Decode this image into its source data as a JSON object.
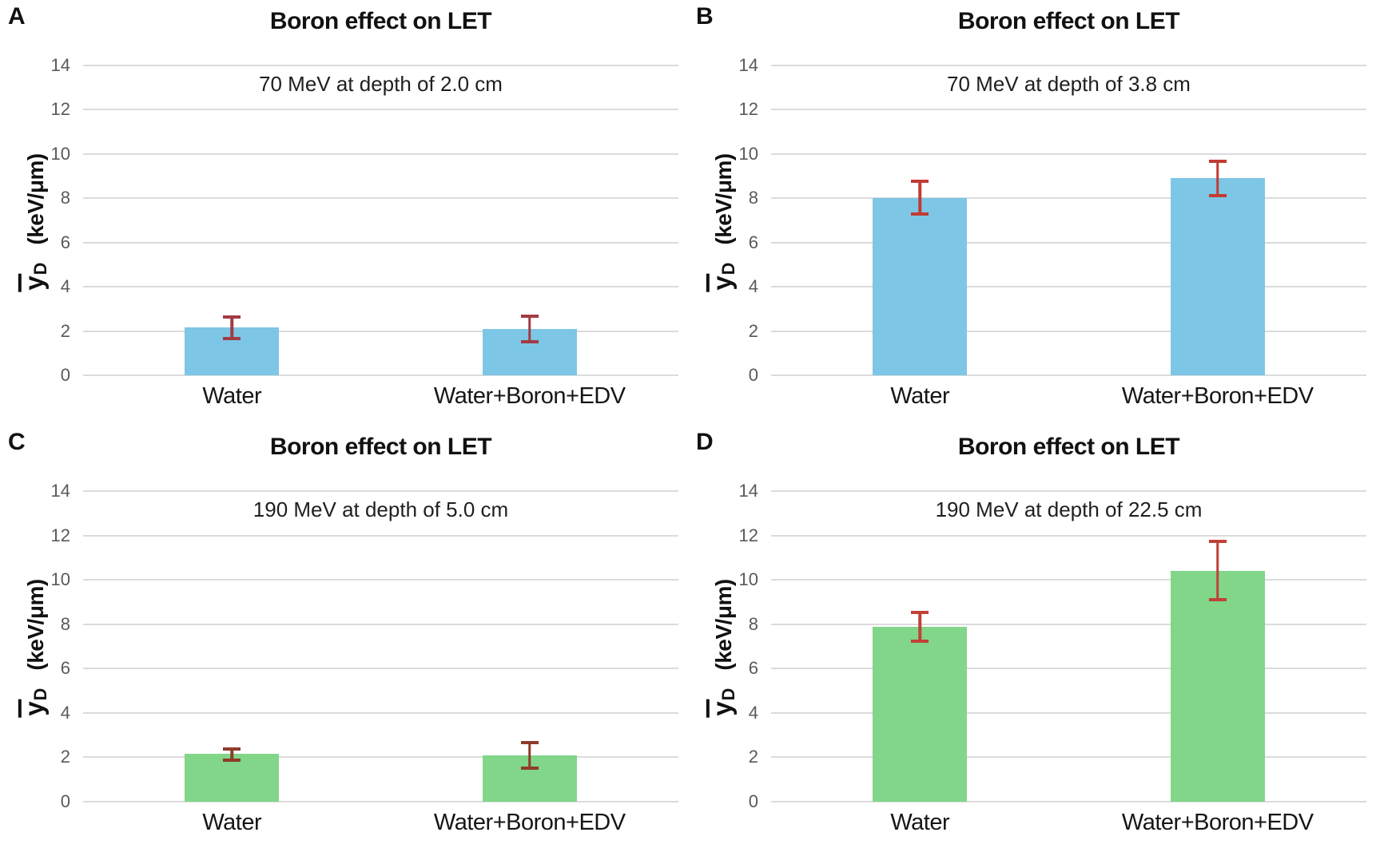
{
  "figure": {
    "background": "#FFFFFF",
    "layout": "2x2-grid",
    "panel_letters": [
      "A",
      "B",
      "C",
      "D"
    ]
  },
  "axis": {
    "ylim": [
      0,
      14
    ],
    "yticks": [
      0,
      2,
      4,
      6,
      8,
      10,
      12,
      14
    ],
    "grid": "horizontal",
    "ylabel_symbol": "y",
    "ylabel_subscript": "D",
    "ylabel_units": "(keV/μm)",
    "tick_color": "#595959",
    "gridline_color": "#DBDBDB",
    "text_color": "#1A1A1A",
    "bar_centers_pct": [
      25,
      75
    ],
    "bar_width_pct": 15.8
  },
  "chart_data": [
    {
      "type": "bar",
      "panel": "A",
      "title": "Boron effect on LET",
      "subtitle": "70 MeV at depth of 2.0 cm",
      "categories": [
        "Water",
        "Water+Boron+EDV"
      ],
      "values": [
        2.15,
        2.1
      ],
      "error_low": [
        1.6,
        1.45
      ],
      "error_high": [
        2.7,
        2.75
      ],
      "bar_color": "#7EC6E5",
      "error_color": "#A23B44",
      "xlabel": "",
      "ylabel": "yD (keV/μm)",
      "ylim": [
        0,
        14
      ]
    },
    {
      "type": "bar",
      "panel": "B",
      "title": "Boron effect on LET",
      "subtitle": "70 MeV at depth of 3.8 cm",
      "categories": [
        "Water",
        "Water+Boron+EDV"
      ],
      "values": [
        8.0,
        8.9
      ],
      "error_low": [
        7.2,
        8.05
      ],
      "error_high": [
        8.85,
        9.75
      ],
      "bar_color": "#7EC6E5",
      "error_color": "#C23B33",
      "xlabel": "",
      "ylabel": "yD (keV/μm)",
      "ylim": [
        0,
        14
      ]
    },
    {
      "type": "bar",
      "panel": "C",
      "title": "Boron effect on LET",
      "subtitle": "190 MeV at depth of 5.0 cm",
      "categories": [
        "Water",
        "Water+Boron+EDV"
      ],
      "values": [
        2.15,
        2.1
      ],
      "error_low": [
        1.8,
        1.45
      ],
      "error_high": [
        2.45,
        2.75
      ],
      "bar_color": "#81D689",
      "error_color": "#8E3B2A",
      "xlabel": "",
      "ylabel": "yD (keV/μm)",
      "ylim": [
        0,
        14
      ]
    },
    {
      "type": "bar",
      "panel": "D",
      "title": "Boron effect on LET",
      "subtitle": "190 MeV at depth of 22.5 cm",
      "categories": [
        "Water",
        "Water+Boron+EDV"
      ],
      "values": [
        7.9,
        10.4
      ],
      "error_low": [
        7.15,
        9.05
      ],
      "error_high": [
        8.6,
        11.8
      ],
      "bar_color": "#81D689",
      "error_color": "#C04137",
      "xlabel": "",
      "ylabel": "yD (keV/μm)",
      "ylim": [
        0,
        14
      ]
    }
  ]
}
